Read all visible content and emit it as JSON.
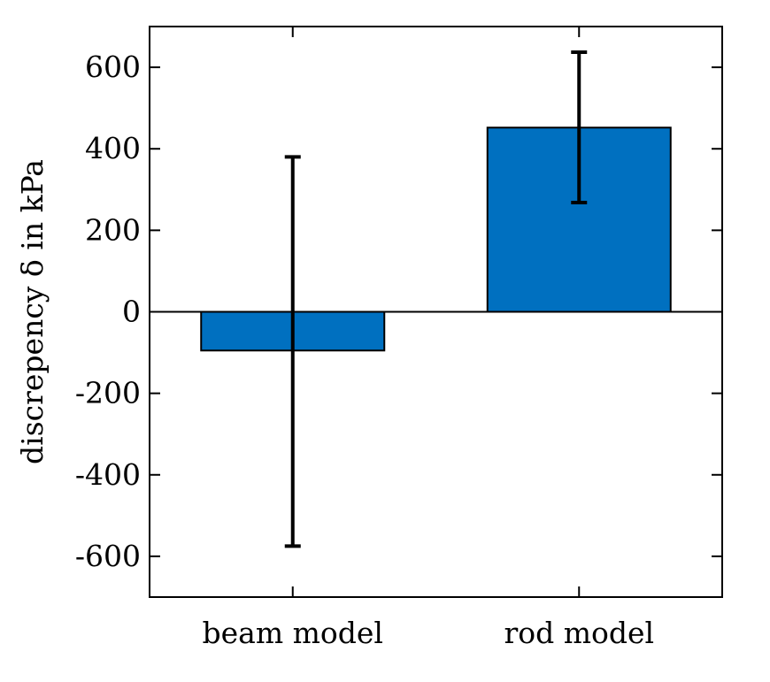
{
  "chart_data": {
    "type": "bar",
    "categories": [
      "beam model",
      "rod model"
    ],
    "values": [
      -95,
      452
    ],
    "error_bars": [
      {
        "low": -575,
        "high": 380
      },
      {
        "low": 268,
        "high": 637
      }
    ],
    "title": "",
    "xlabel": "",
    "ylabel": "discrepency δ in kPa",
    "ylim": [
      -700,
      700
    ],
    "yticks": [
      600,
      400,
      200,
      0,
      -200,
      -400,
      -600
    ],
    "ytick_labels": [
      "600",
      "400",
      "200",
      "0",
      "-200",
      "-400",
      "-600"
    ],
    "grid": false,
    "bar_color": "#0070c0",
    "bar_edge_color": "#000000",
    "errorbar_color": "#000000"
  }
}
